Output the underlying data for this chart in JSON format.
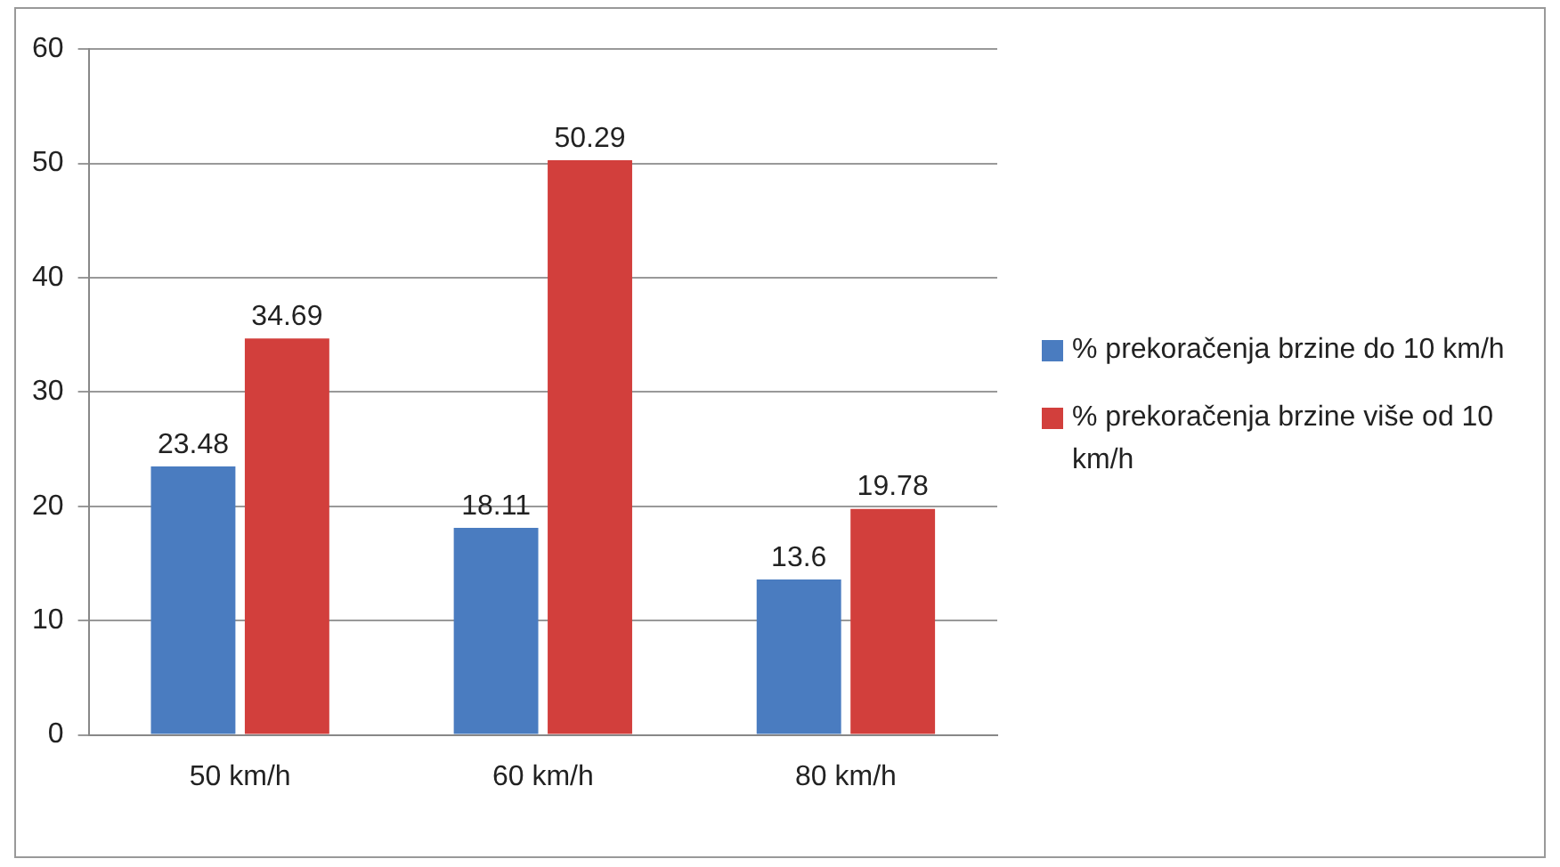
{
  "chart_data": {
    "type": "bar",
    "categories": [
      "50 km/h",
      "60 km/h",
      "80 km/h"
    ],
    "series": [
      {
        "name": "% prekoračenja brzine do 10 km/h",
        "color": "#4a7cc0",
        "values": [
          23.48,
          18.11,
          13.6
        ]
      },
      {
        "name": "% prekoračenja brzine više od 10 km/h",
        "color": "#d23f3c",
        "values": [
          34.69,
          50.29,
          19.78
        ]
      }
    ],
    "ylim": [
      0,
      60
    ],
    "yticks": [
      0,
      10,
      20,
      30,
      40,
      50,
      60
    ],
    "grid": "y",
    "legend": "right",
    "data_labels": true
  }
}
